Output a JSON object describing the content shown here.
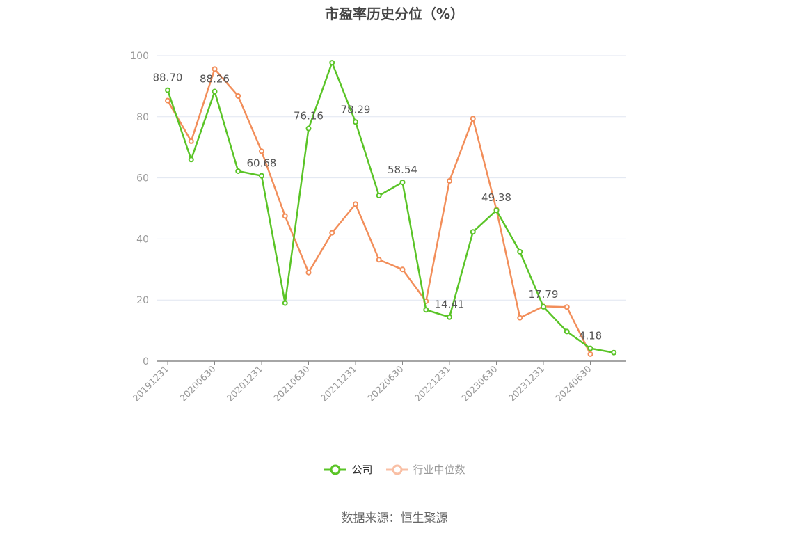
{
  "title": "市盈率历史分位（%）",
  "source_text": "数据来源：恒生聚源",
  "legend": [
    {
      "label": "公司",
      "color": "#5ac427"
    },
    {
      "label": "行业中位数",
      "color": "#f28e5a"
    }
  ],
  "chart_data": {
    "type": "line",
    "title": "市盈率历史分位（%）",
    "xlabel": "",
    "ylabel": "",
    "ylim": [
      0,
      100
    ],
    "yticks": [
      0,
      20,
      40,
      60,
      80,
      100
    ],
    "grid": true,
    "legend_position": "bottom",
    "x": [
      "20191231",
      "20200331",
      "20200630",
      "20200930",
      "20201231",
      "20210331",
      "20210630",
      "20210930",
      "20211231",
      "20220331",
      "20220630",
      "20220930",
      "20221231",
      "20230331",
      "20230630",
      "20230930",
      "20231231",
      "20240331",
      "20240630",
      "20240930"
    ],
    "xtick_labels": [
      "20191231",
      "20200630",
      "20201231",
      "20210630",
      "20211231",
      "20220630",
      "20221231",
      "20230630",
      "20231231",
      "20240630"
    ],
    "series": [
      {
        "name": "公司",
        "color": "#5ac427",
        "values": [
          88.7,
          66.0,
          88.26,
          62.2,
          60.68,
          19.0,
          76.16,
          97.7,
          78.29,
          54.2,
          58.54,
          16.8,
          14.41,
          42.3,
          49.38,
          35.8,
          17.79,
          9.7,
          4.18,
          2.8
        ],
        "labels": {
          "0": "88.70",
          "2": "88.26",
          "4": "60.68",
          "6": "76.16",
          "8": "78.29",
          "10": "58.54",
          "12": "14.41",
          "14": "49.38",
          "16": "17.79",
          "18": "4.18"
        }
      },
      {
        "name": "行业中位数",
        "color": "#f28e5a",
        "values": [
          85.3,
          72.0,
          95.6,
          86.8,
          68.7,
          47.5,
          29.0,
          42.0,
          51.4,
          33.2,
          30.0,
          19.6,
          59.0,
          79.4,
          49.6,
          14.2,
          17.9,
          17.7,
          2.3,
          null
        ]
      }
    ]
  }
}
